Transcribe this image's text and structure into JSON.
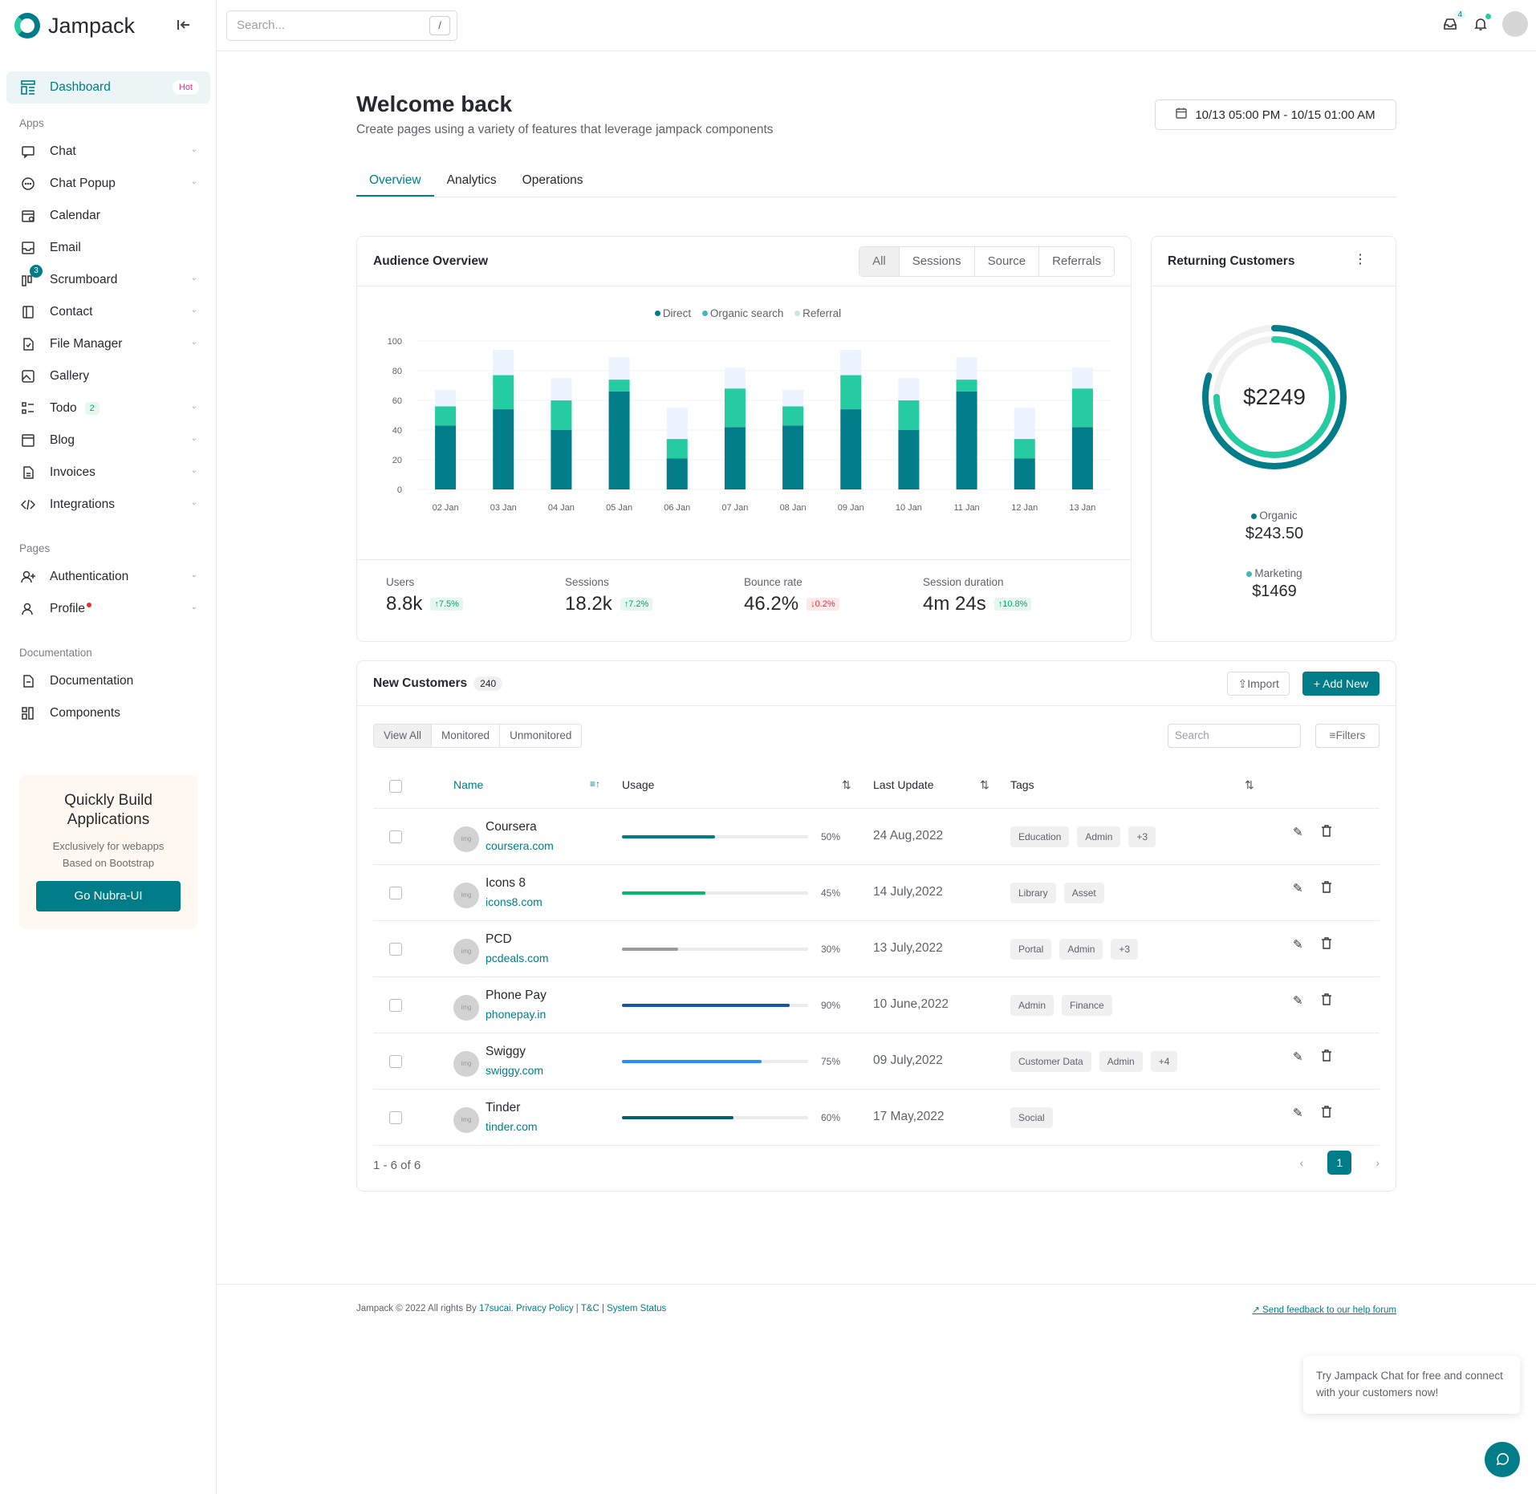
{
  "brand": {
    "name": "Jampack"
  },
  "sidebar": {
    "dashboard": {
      "label": "Dashboard",
      "badge": "Hot"
    },
    "apps_title": "Apps",
    "apps": [
      {
        "label": "Chat",
        "icon": "chat-icon",
        "chev": true
      },
      {
        "label": "Chat Popup",
        "icon": "chat-popup-icon",
        "chev": true
      },
      {
        "label": "Calendar",
        "icon": "calendar-icon",
        "chev": false
      },
      {
        "label": "Email",
        "icon": "email-icon",
        "chev": false
      },
      {
        "label": "Scrumboard",
        "icon": "scrumboard-icon",
        "chev": true,
        "noti": "3"
      },
      {
        "label": "Contact",
        "icon": "contact-icon",
        "chev": true
      },
      {
        "label": "File Manager",
        "icon": "file-manager-icon",
        "chev": true
      },
      {
        "label": "Gallery",
        "icon": "gallery-icon",
        "chev": false
      },
      {
        "label": "Todo",
        "icon": "todo-icon",
        "chev": true,
        "count": "2"
      },
      {
        "label": "Blog",
        "icon": "blog-icon",
        "chev": true
      },
      {
        "label": "Invoices",
        "icon": "invoice-icon",
        "chev": true
      },
      {
        "label": "Integrations",
        "icon": "code-icon",
        "chev": true
      }
    ],
    "pages_title": "Pages",
    "pages": [
      {
        "label": "Authentication",
        "icon": "user-plus-icon",
        "chev": true
      },
      {
        "label": "Profile",
        "icon": "user-icon",
        "chev": true,
        "dot": true
      }
    ],
    "docs_title": "Documentation",
    "docs": [
      {
        "label": "Documentation",
        "icon": "document-icon"
      },
      {
        "label": "Components",
        "icon": "components-icon"
      }
    ],
    "promo": {
      "title": "Quickly Build Applications",
      "sub1": "Exclusively for webapps",
      "sub2": "Based on Bootstrap",
      "button": "Go Nubra-UI"
    }
  },
  "topbar": {
    "search_placeholder": "Search...",
    "shortcut": "/",
    "inbox_count": "4"
  },
  "header": {
    "title": "Welcome back",
    "subtitle": "Create pages using a variety of features that leverage jampack components",
    "date_range": "10/13 05:00 PM - 10/15 01:00 AM"
  },
  "tabs": [
    "Overview",
    "Analytics",
    "Operations"
  ],
  "audience": {
    "title": "Audience Overview",
    "filters": [
      "All",
      "Sessions",
      "Source",
      "Referrals"
    ],
    "legend": [
      "Direct",
      "Organic search",
      "Referral"
    ],
    "stats": [
      {
        "label": "Users",
        "value": "8.8k",
        "change": "7.5%",
        "dir": "up"
      },
      {
        "label": "Sessions",
        "value": "18.2k",
        "change": "7.2%",
        "dir": "up"
      },
      {
        "label": "Bounce rate",
        "value": "46.2%",
        "change": "0.2%",
        "dir": "down"
      },
      {
        "label": "Session duration",
        "value": "4m 24s",
        "change": "10.8%",
        "dir": "up"
      }
    ]
  },
  "chart_data": {
    "type": "bar",
    "stacked": true,
    "categories": [
      "02 Jan",
      "03 Jan",
      "04 Jan",
      "05 Jan",
      "06 Jan",
      "07 Jan",
      "08 Jan",
      "09 Jan",
      "10 Jan",
      "11 Jan",
      "12 Jan",
      "13 Jan"
    ],
    "series": [
      {
        "name": "Direct",
        "color": "#007d88",
        "values": [
          43,
          54,
          40,
          66,
          21,
          42,
          43,
          54,
          40,
          66,
          21,
          42
        ]
      },
      {
        "name": "Organic search",
        "color": "#25cba1",
        "values": [
          13,
          23,
          20,
          8,
          13,
          26,
          13,
          23,
          20,
          8,
          13,
          26
        ]
      },
      {
        "name": "Referral",
        "color": "#ebf3fe",
        "values": [
          11,
          17,
          15,
          15,
          21,
          14,
          11,
          17,
          15,
          15,
          21,
          14
        ]
      }
    ],
    "ylim": [
      0,
      100
    ],
    "yticks": [
      0,
      20,
      40,
      60,
      80,
      100
    ],
    "legend_position": "top-center",
    "grid": true
  },
  "returning": {
    "title": "Returning Customers",
    "total": "$2249",
    "items": [
      {
        "label": "Organic",
        "value": "$243.50",
        "color": "#007d88"
      },
      {
        "label": "Marketing",
        "value": "$1469",
        "color": "#25cba1"
      }
    ],
    "ring_outer_fraction": 0.8,
    "ring_inner_fraction": 0.75
  },
  "customers": {
    "title": "New Customers",
    "count": "240",
    "import": "Import",
    "add": "+ Add New",
    "views": [
      "View All",
      "Monitored",
      "Unmonitored"
    ],
    "search_placeholder": "Search",
    "filters": "Filters",
    "columns": [
      "Name",
      "Usage",
      "Last Update",
      "Tags"
    ],
    "rows": [
      {
        "name": "Coursera",
        "url": "coursera.com",
        "usage": 50,
        "usage_label": "50%",
        "color": "#007d88",
        "date": "24 Aug,2022",
        "tags": [
          "Education",
          "Admin",
          "+3"
        ]
      },
      {
        "name": "Icons 8",
        "url": "icons8.com",
        "usage": 45,
        "usage_label": "45%",
        "color": "#00b96b",
        "date": "14 July,2022",
        "tags": [
          "Library",
          "Asset"
        ]
      },
      {
        "name": "PCD",
        "url": "pcdeals.com",
        "usage": 30,
        "usage_label": "30%",
        "color": "#9a9a9a",
        "date": "13 July,2022",
        "tags": [
          "Portal",
          "Admin",
          "+3"
        ]
      },
      {
        "name": "Phone Pay",
        "url": "phonepay.in",
        "usage": 90,
        "usage_label": "90%",
        "color": "#1955a6",
        "date": "10 June,2022",
        "tags": [
          "Admin",
          "Finance"
        ]
      },
      {
        "name": "Swiggy",
        "url": "swiggy.com",
        "usage": 75,
        "usage_label": "75%",
        "color": "#298dff",
        "date": "09 July,2022",
        "tags": [
          "Customer Data",
          "Admin",
          "+4"
        ]
      },
      {
        "name": "Tinder",
        "url": "tinder.com",
        "usage": 60,
        "usage_label": "60%",
        "color": "#00636c",
        "date": "17 May,2022",
        "tags": [
          "Social"
        ]
      }
    ],
    "pager": "1 - 6 of 6",
    "page": "1"
  },
  "footer": {
    "copyright": "Jampack © 2022 All rights By",
    "author": "17sucai.",
    "links": [
      "Privacy Policy",
      "T&C",
      "System Status"
    ],
    "feedback": "Send feedback to our help forum"
  },
  "chat_popup": {
    "text": "Try Jampack Chat for free and connect with your customers now!"
  }
}
